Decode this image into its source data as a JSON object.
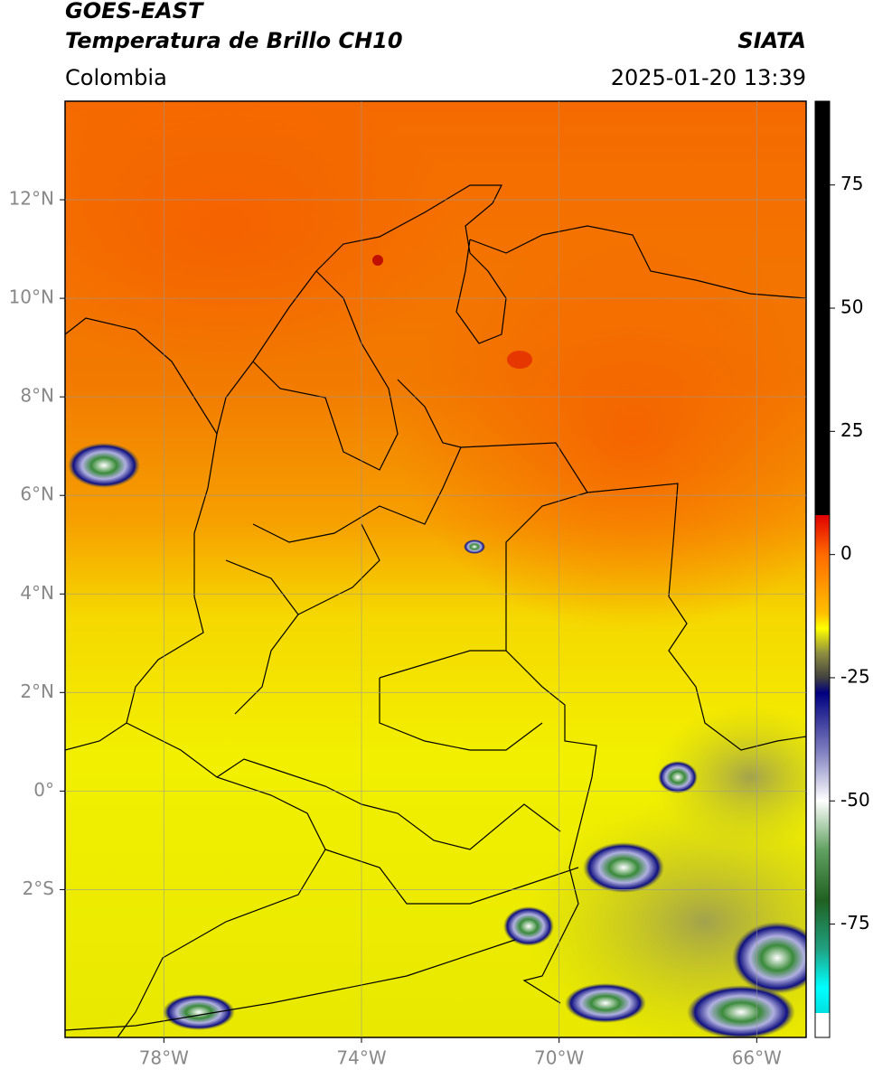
{
  "header": {
    "satellite": "GOES-EAST",
    "product": "Temperatura de Brillo CH10",
    "source": "SIATA",
    "region": "Colombia",
    "datetime": "2025-01-20 13:39"
  },
  "map": {
    "xlim": [
      -80,
      -65
    ],
    "ylim": [
      -5,
      14
    ],
    "xticks": [
      {
        "value": -78,
        "label": "78°W"
      },
      {
        "value": -74,
        "label": "74°W"
      },
      {
        "value": -70,
        "label": "70°W"
      },
      {
        "value": -66,
        "label": "66°W"
      }
    ],
    "yticks": [
      {
        "value": 12,
        "label": "12°N"
      },
      {
        "value": 10,
        "label": "10°N"
      },
      {
        "value": 8,
        "label": "8°N"
      },
      {
        "value": 6,
        "label": "6°N"
      },
      {
        "value": 4,
        "label": "4°N"
      },
      {
        "value": 2,
        "label": "2°N"
      },
      {
        "value": 0,
        "label": "0°"
      },
      {
        "value": -2,
        "label": "2°S"
      }
    ],
    "grid": true
  },
  "colorbar": {
    "lim": [
      -98,
      92
    ],
    "ticks": [
      75,
      50,
      25,
      0,
      -25,
      -50,
      -75
    ]
  }
}
